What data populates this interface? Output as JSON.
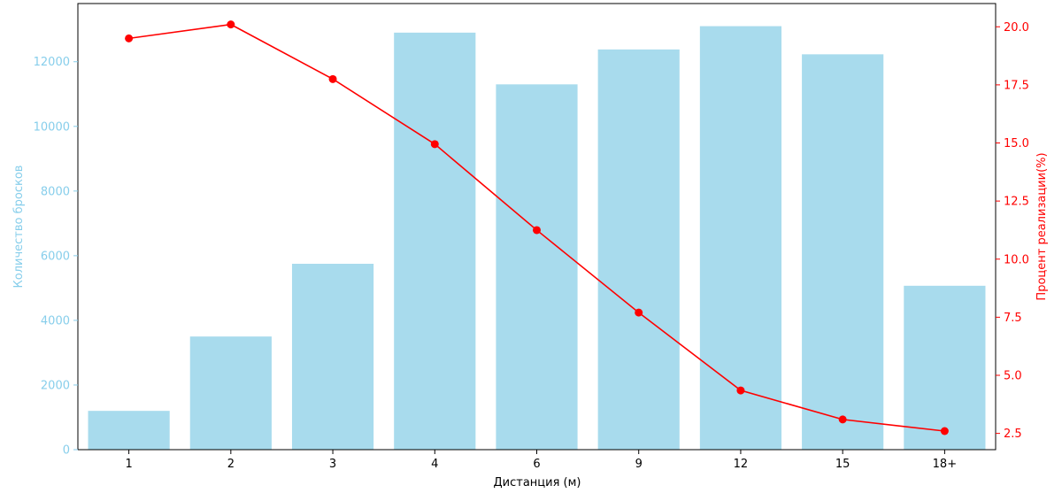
{
  "chart_data": {
    "type": "bar",
    "title": "",
    "xlabel": "Дистанция (м)",
    "ylabel": "Количество бросков",
    "y2label": "Процент реализации(%)",
    "categories": [
      "1",
      "2",
      "3",
      "4",
      "6",
      "9",
      "12",
      "15",
      "18+"
    ],
    "series": [
      {
        "type": "bar",
        "axis": "left",
        "color": "#a8dbed",
        "values": [
          1200,
          3500,
          5750,
          12900,
          11300,
          12380,
          13100,
          12230,
          5070
        ]
      },
      {
        "type": "line",
        "axis": "right",
        "color": "#ff0000",
        "values": [
          19.5,
          20.1,
          17.75,
          14.95,
          11.25,
          7.7,
          4.35,
          3.1,
          2.6
        ]
      }
    ],
    "ylim": [
      0,
      13800
    ],
    "y2lim": [
      1.8,
      21.0
    ],
    "yticks": [
      "0",
      "2000",
      "4000",
      "6000",
      "8000",
      "10000",
      "12000"
    ],
    "y2ticks": [
      "2.5",
      "5.0",
      "7.5",
      "10.0",
      "12.5",
      "15.0",
      "17.5",
      "20.0"
    ],
    "left_axis_color": "#87ceeb",
    "right_axis_color": "#ff0000",
    "grid": false
  }
}
